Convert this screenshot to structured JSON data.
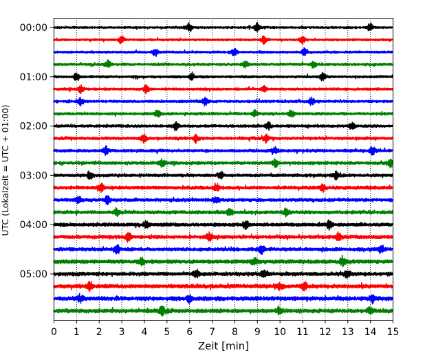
{
  "chart_data": {
    "type": "line",
    "title": "",
    "xlabel": "Zeit  [min]",
    "ylabel": "UTC (Lokalzeit = UTC + 01:00)",
    "xlim": [
      0,
      15
    ],
    "x_ticks": [
      "0",
      "1",
      "2",
      "3",
      "4",
      "5",
      "6",
      "7",
      "8",
      "9",
      "10",
      "11",
      "12",
      "13",
      "14",
      "15"
    ],
    "vertical_grid": "dotted",
    "y_ticks": [
      "00:00",
      "01:00",
      "02:00",
      "03:00",
      "04:00",
      "05:00"
    ],
    "traces_per_hour": 4,
    "trace_minutes": 15,
    "color_cycle": [
      "#000000",
      "#ff0000",
      "#0000ff",
      "#008000"
    ],
    "traces": [
      {
        "start": "00:00",
        "color": "#000000",
        "bursts": [
          6.0,
          9.0,
          14.0
        ]
      },
      {
        "start": "00:15",
        "color": "#ff0000",
        "bursts": [
          3.0,
          9.3,
          11.0
        ]
      },
      {
        "start": "00:30",
        "color": "#0000ff",
        "bursts": [
          4.5,
          8.0,
          11.1
        ]
      },
      {
        "start": "00:45",
        "color": "#008000",
        "bursts": [
          2.4,
          8.5,
          11.5
        ]
      },
      {
        "start": "01:00",
        "color": "#000000",
        "bursts": [
          1.0,
          6.1,
          11.9
        ]
      },
      {
        "start": "01:15",
        "color": "#ff0000",
        "bursts": [
          1.2,
          4.1,
          9.3
        ]
      },
      {
        "start": "01:30",
        "color": "#0000ff",
        "bursts": [
          1.2,
          6.7,
          11.4
        ]
      },
      {
        "start": "01:45",
        "color": "#008000",
        "bursts": [
          4.6,
          8.9,
          10.5
        ]
      },
      {
        "start": "02:00",
        "color": "#000000",
        "bursts": [
          5.4,
          9.5,
          13.2
        ]
      },
      {
        "start": "02:15",
        "color": "#ff0000",
        "bursts": [
          4.0,
          6.3,
          9.4
        ]
      },
      {
        "start": "02:30",
        "color": "#0000ff",
        "bursts": [
          2.3,
          9.8,
          14.1
        ]
      },
      {
        "start": "02:45",
        "color": "#008000",
        "bursts": [
          4.8,
          9.8,
          14.9
        ]
      },
      {
        "start": "03:00",
        "color": "#000000",
        "bursts": [
          1.6,
          7.4,
          12.5
        ]
      },
      {
        "start": "03:15",
        "color": "#ff0000",
        "bursts": [
          2.1,
          7.2,
          11.9
        ]
      },
      {
        "start": "03:30",
        "color": "#0000ff",
        "bursts": [
          1.1,
          2.4,
          7.2
        ]
      },
      {
        "start": "03:45",
        "color": "#008000",
        "bursts": [
          2.8,
          7.8,
          10.3
        ]
      },
      {
        "start": "04:00",
        "color": "#000000",
        "bursts": [
          4.1,
          8.5,
          12.2
        ]
      },
      {
        "start": "04:15",
        "color": "#ff0000",
        "bursts": [
          3.3,
          6.9,
          12.6
        ]
      },
      {
        "start": "04:30",
        "color": "#0000ff",
        "bursts": [
          2.8,
          9.2,
          14.5
        ]
      },
      {
        "start": "04:45",
        "color": "#008000",
        "bursts": [
          3.9,
          8.9,
          12.8
        ]
      },
      {
        "start": "05:00",
        "color": "#000000",
        "bursts": [
          6.3,
          9.3,
          13.0
        ]
      },
      {
        "start": "05:15",
        "color": "#ff0000",
        "bursts": [
          1.6,
          10.0,
          11.1
        ]
      },
      {
        "start": "05:30",
        "color": "#0000ff",
        "bursts": [
          1.2,
          6.0,
          14.1
        ]
      },
      {
        "start": "05:45",
        "color": "#008000",
        "bursts": [
          4.8,
          10.0,
          14.0
        ]
      }
    ]
  }
}
